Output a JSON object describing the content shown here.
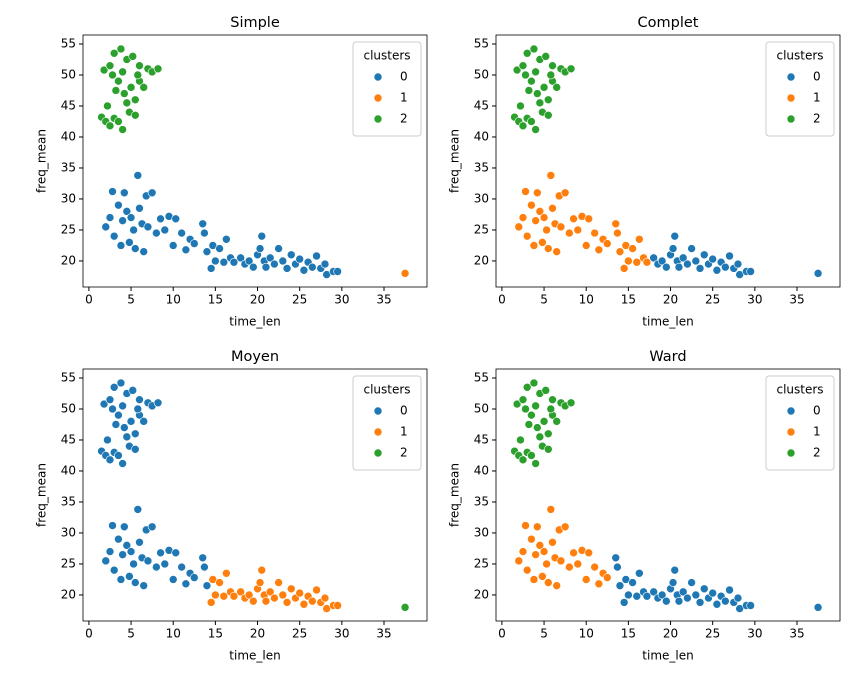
{
  "chart_data": [
    {
      "type": "scatter",
      "title": "Simple",
      "x_label": "time_len",
      "y_label": "freq_mean",
      "legend_title": "clusters",
      "legend": "upper right",
      "xlim": [
        -0.7,
        40.1
      ],
      "ylim": [
        15.8,
        56.45
      ],
      "xticks": [
        0,
        5,
        10,
        15,
        20,
        25,
        30,
        35
      ],
      "yticks": [
        20,
        25,
        30,
        35,
        40,
        45,
        50,
        55
      ],
      "series": [
        {
          "name": "0",
          "color": "#1f77b4",
          "x": [
            2,
            2.5,
            2.8,
            3,
            3.5,
            3.8,
            4,
            4.2,
            4.5,
            4.8,
            5,
            5.3,
            5.5,
            5.8,
            6,
            6.3,
            6.5,
            6.8,
            7,
            7.5,
            8,
            8.5,
            9,
            9.5,
            10,
            10.3,
            11,
            11.5,
            12,
            12.5,
            13.5,
            13.7,
            14,
            14.5,
            14.7,
            15,
            15.5,
            16,
            16.3,
            16.8,
            17.2,
            18,
            18.5,
            19,
            19.5,
            20,
            20.3,
            20.5,
            20.8,
            21,
            21.5,
            22,
            22.5,
            23,
            23.5,
            24,
            24.5,
            25,
            25.5,
            26,
            26.5,
            27,
            27.5,
            28,
            28.2,
            29,
            29.5
          ],
          "y": [
            25.5,
            27,
            31.2,
            24,
            29,
            22.5,
            26.5,
            31,
            28,
            23,
            27,
            25,
            22,
            33.8,
            28.5,
            26,
            21.5,
            30.5,
            25.5,
            31,
            24.5,
            26.8,
            25,
            27.2,
            22.5,
            26.8,
            24.5,
            21.8,
            23.5,
            22.8,
            26,
            24.5,
            21.5,
            18.8,
            22.5,
            20,
            22,
            19.8,
            23.5,
            20.5,
            19.8,
            20.5,
            19.5,
            20,
            19,
            21,
            22,
            24,
            20,
            19,
            20.5,
            19.5,
            22,
            20,
            18.8,
            21,
            19.5,
            20.3,
            18.5,
            19.8,
            19,
            20.8,
            18.8,
            19.5,
            17.8,
            18.3,
            18.3
          ]
        },
        {
          "name": "1",
          "color": "#ff7f0e",
          "x": [
            37.5
          ],
          "y": [
            18
          ]
        },
        {
          "name": "2",
          "color": "#2ca02c",
          "x": [
            1.5,
            2,
            2.2,
            2.5,
            3,
            4,
            3.5,
            1.8,
            2.5,
            3,
            3.8,
            4.5,
            5.2,
            4,
            3.5,
            5,
            4.2,
            5.5,
            4.8,
            5.5,
            6,
            6.5,
            7,
            7.5,
            8.2,
            2.8,
            3.2,
            6,
            4.5,
            5.8
          ],
          "y": [
            43.2,
            42.5,
            45,
            41.8,
            43,
            41.2,
            42.5,
            50.8,
            51.5,
            53.5,
            54.2,
            52.5,
            53,
            50.5,
            49,
            48,
            47,
            46,
            44,
            43.5,
            49,
            48,
            51,
            50.5,
            51,
            50,
            47.5,
            51.5,
            45.5,
            50
          ]
        }
      ]
    },
    {
      "type": "scatter",
      "title": "Complet",
      "x_label": "time_len",
      "y_label": "freq_mean",
      "legend_title": "clusters",
      "legend": "upper right",
      "xlim": [
        -0.7,
        40.1
      ],
      "ylim": [
        15.8,
        56.45
      ],
      "xticks": [
        0,
        5,
        10,
        15,
        20,
        25,
        30,
        35
      ],
      "yticks": [
        20,
        25,
        30,
        35,
        40,
        45,
        50,
        55
      ],
      "series": [
        {
          "name": "0",
          "color": "#1f77b4",
          "x": [
            18,
            18.5,
            19,
            19.5,
            20,
            20.3,
            20.5,
            20.8,
            21,
            21.5,
            22,
            22.5,
            23,
            23.5,
            24,
            24.5,
            25,
            25.5,
            26,
            26.5,
            27,
            27.5,
            28,
            28.2,
            29,
            29.5,
            37.5
          ],
          "y": [
            20.5,
            19.5,
            20,
            19,
            21,
            22,
            24,
            20,
            19,
            20.5,
            19.5,
            22,
            20,
            18.8,
            21,
            19.5,
            20.3,
            18.5,
            19.8,
            19,
            20.8,
            18.8,
            19.5,
            17.8,
            18.3,
            18.3,
            18
          ]
        },
        {
          "name": "1",
          "color": "#ff7f0e",
          "x": [
            2,
            2.5,
            2.8,
            3,
            3.5,
            3.8,
            4,
            4.2,
            4.5,
            4.8,
            5,
            5.3,
            5.5,
            5.8,
            6,
            6.3,
            6.5,
            6.8,
            7,
            7.5,
            8,
            8.5,
            9,
            9.5,
            10,
            10.3,
            11,
            11.5,
            12,
            12.5,
            13.5,
            13.7,
            14,
            14.5,
            14.7,
            15,
            15.5,
            16,
            16.3,
            16.8,
            17.2
          ],
          "y": [
            25.5,
            27,
            31.2,
            24,
            29,
            22.5,
            26.5,
            31,
            28,
            23,
            27,
            25,
            22,
            33.8,
            28.5,
            26,
            21.5,
            30.5,
            25.5,
            31,
            24.5,
            26.8,
            25,
            27.2,
            22.5,
            26.8,
            24.5,
            21.8,
            23.5,
            22.8,
            26,
            24.5,
            21.5,
            18.8,
            22.5,
            20,
            22,
            19.8,
            23.5,
            20.5,
            19.8
          ]
        },
        {
          "name": "2",
          "color": "#2ca02c",
          "x": [
            1.5,
            2,
            2.2,
            2.5,
            3,
            4,
            3.5,
            1.8,
            2.5,
            3,
            3.8,
            4.5,
            5.2,
            4,
            3.5,
            5,
            4.2,
            5.5,
            4.8,
            5.5,
            6,
            6.5,
            7,
            7.5,
            8.2,
            2.8,
            3.2,
            6,
            4.5,
            5.8
          ],
          "y": [
            43.2,
            42.5,
            45,
            41.8,
            43,
            41.2,
            42.5,
            50.8,
            51.5,
            53.5,
            54.2,
            52.5,
            53,
            50.5,
            49,
            48,
            47,
            46,
            44,
            43.5,
            49,
            48,
            51,
            50.5,
            51,
            50,
            47.5,
            51.5,
            45.5,
            50
          ]
        }
      ]
    },
    {
      "type": "scatter",
      "title": "Moyen",
      "x_label": "time_len",
      "y_label": "freq_mean",
      "legend_title": "clusters",
      "legend": "upper right",
      "xlim": [
        -0.7,
        40.1
      ],
      "ylim": [
        15.8,
        56.45
      ],
      "xticks": [
        0,
        5,
        10,
        15,
        20,
        25,
        30,
        35
      ],
      "yticks": [
        20,
        25,
        30,
        35,
        40,
        45,
        50,
        55
      ],
      "series": [
        {
          "name": "0",
          "color": "#1f77b4",
          "x": [
            1.5,
            2,
            2.2,
            2.5,
            3,
            4,
            3.5,
            1.8,
            2.5,
            3,
            3.8,
            4.5,
            5.2,
            4,
            3.5,
            5,
            4.2,
            5.5,
            4.8,
            5.5,
            6,
            6.5,
            7,
            7.5,
            8.2,
            2.8,
            3.2,
            6,
            4.5,
            5.8,
            2,
            2.5,
            2.8,
            3,
            3.5,
            3.8,
            4,
            4.2,
            4.5,
            4.8,
            5,
            5.3,
            5.5,
            5.8,
            6,
            6.3,
            6.5,
            6.8,
            7,
            7.5,
            8,
            8.5,
            9,
            9.5,
            10,
            10.3,
            11,
            11.5,
            12,
            12.5,
            13.5,
            13.7,
            14
          ],
          "y": [
            43.2,
            42.5,
            45,
            41.8,
            43,
            41.2,
            42.5,
            50.8,
            51.5,
            53.5,
            54.2,
            52.5,
            53,
            50.5,
            49,
            48,
            47,
            46,
            44,
            43.5,
            49,
            48,
            51,
            50.5,
            51,
            50,
            47.5,
            51.5,
            45.5,
            50,
            25.5,
            27,
            31.2,
            24,
            29,
            22.5,
            26.5,
            31,
            28,
            23,
            27,
            25,
            22,
            33.8,
            28.5,
            26,
            21.5,
            30.5,
            25.5,
            31,
            24.5,
            26.8,
            25,
            27.2,
            22.5,
            26.8,
            24.5,
            21.8,
            23.5,
            22.8,
            26,
            24.5,
            21.5
          ]
        },
        {
          "name": "1",
          "color": "#ff7f0e",
          "x": [
            14.5,
            14.7,
            15,
            15.5,
            16,
            16.3,
            16.8,
            17.2,
            18,
            18.5,
            19,
            19.5,
            20,
            20.3,
            20.5,
            20.8,
            21,
            21.5,
            22,
            22.5,
            23,
            23.5,
            24,
            24.5,
            25,
            25.5,
            26,
            26.5,
            27,
            27.5,
            28,
            28.2,
            29,
            29.5
          ],
          "y": [
            18.8,
            22.5,
            20,
            22,
            19.8,
            23.5,
            20.5,
            19.8,
            20.5,
            19.5,
            20,
            19,
            21,
            22,
            24,
            20,
            19,
            20.5,
            19.5,
            22,
            20,
            18.8,
            21,
            19.5,
            20.3,
            18.5,
            19.8,
            19,
            20.8,
            18.8,
            19.5,
            17.8,
            18.3,
            18.3
          ]
        },
        {
          "name": "2",
          "color": "#2ca02c",
          "x": [
            37.5
          ],
          "y": [
            18
          ]
        }
      ]
    },
    {
      "type": "scatter",
      "title": "Ward",
      "x_label": "time_len",
      "y_label": "freq_mean",
      "legend_title": "clusters",
      "legend": "upper right",
      "xlim": [
        -0.7,
        40.1
      ],
      "ylim": [
        15.8,
        56.45
      ],
      "xticks": [
        0,
        5,
        10,
        15,
        20,
        25,
        30,
        35
      ],
      "yticks": [
        20,
        25,
        30,
        35,
        40,
        45,
        50,
        55
      ],
      "series": [
        {
          "name": "0",
          "color": "#1f77b4",
          "x": [
            13.5,
            13.7,
            14,
            14.5,
            14.7,
            15,
            15.5,
            16,
            16.3,
            16.8,
            17.2,
            18,
            18.5,
            19,
            19.5,
            20,
            20.3,
            20.5,
            20.8,
            21,
            21.5,
            22,
            22.5,
            23,
            23.5,
            24,
            24.5,
            25,
            25.5,
            26,
            26.5,
            27,
            27.5,
            28,
            28.2,
            29,
            29.5,
            37.5
          ],
          "y": [
            26,
            24.5,
            21.5,
            18.8,
            22.5,
            20,
            22,
            19.8,
            23.5,
            20.5,
            19.8,
            20.5,
            19.5,
            20,
            19,
            21,
            22,
            24,
            20,
            19,
            20.5,
            19.5,
            22,
            20,
            18.8,
            21,
            19.5,
            20.3,
            18.5,
            19.8,
            19,
            20.8,
            18.8,
            19.5,
            17.8,
            18.3,
            18.3,
            18
          ]
        },
        {
          "name": "1",
          "color": "#ff7f0e",
          "x": [
            2,
            2.5,
            2.8,
            3,
            3.5,
            3.8,
            4,
            4.2,
            4.5,
            4.8,
            5,
            5.3,
            5.5,
            5.8,
            6,
            6.3,
            6.5,
            6.8,
            7,
            7.5,
            8,
            8.5,
            9,
            9.5,
            10,
            10.3,
            11,
            11.5,
            12,
            12.5
          ],
          "y": [
            25.5,
            27,
            31.2,
            24,
            29,
            22.5,
            26.5,
            31,
            28,
            23,
            27,
            25,
            22,
            33.8,
            28.5,
            26,
            21.5,
            30.5,
            25.5,
            31,
            24.5,
            26.8,
            25,
            27.2,
            22.5,
            26.8,
            24.5,
            21.8,
            23.5,
            22.8
          ]
        },
        {
          "name": "2",
          "color": "#2ca02c",
          "x": [
            1.5,
            2,
            2.2,
            2.5,
            3,
            4,
            3.5,
            1.8,
            2.5,
            3,
            3.8,
            4.5,
            5.2,
            4,
            3.5,
            5,
            4.2,
            5.5,
            4.8,
            5.5,
            6,
            6.5,
            7,
            7.5,
            8.2,
            2.8,
            3.2,
            6,
            4.5,
            5.8
          ],
          "y": [
            43.2,
            42.5,
            45,
            41.8,
            43,
            41.2,
            42.5,
            50.8,
            51.5,
            53.5,
            54.2,
            52.5,
            53,
            50.5,
            49,
            48,
            47,
            46,
            44,
            43.5,
            49,
            48,
            51,
            50.5,
            51,
            50,
            47.5,
            51.5,
            45.5,
            50
          ]
        }
      ]
    }
  ]
}
